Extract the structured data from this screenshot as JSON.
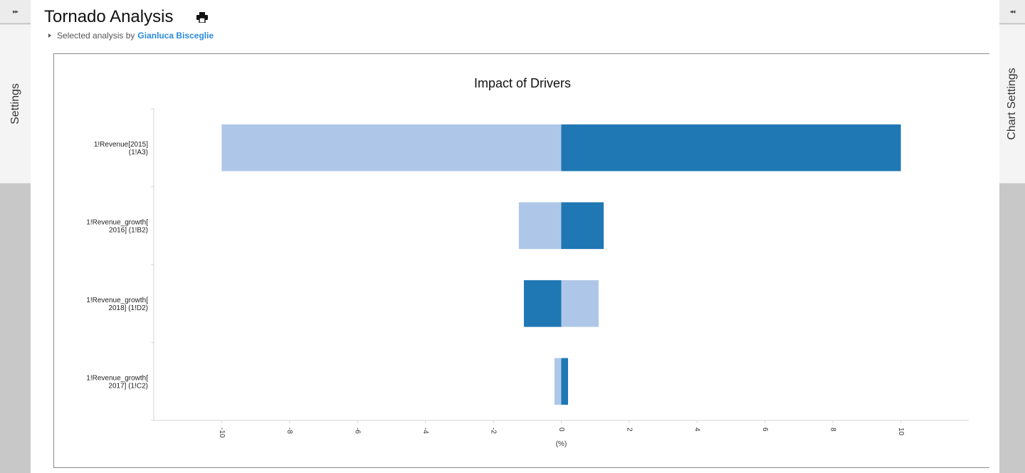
{
  "header": {
    "title": "Tornado Analysis",
    "subtitle_prefix": "Selected analysis by",
    "author": "Gianluca Bisceglie"
  },
  "left_panel": {
    "toggle": "▸▸",
    "label": "Settings"
  },
  "right_panel": {
    "toggle": "◂◂",
    "label": "Chart Settings"
  },
  "chart_data": {
    "type": "bar",
    "orientation": "horizontal",
    "title": "Impact of Drivers",
    "xlabel": "(%)",
    "xlim": [
      -12,
      12
    ],
    "x_ticks": [
      -10,
      -8,
      -6,
      -4,
      -2,
      0,
      2,
      4,
      6,
      8,
      10
    ],
    "categories": [
      [
        "1!Revenue[2015]",
        "(1!A3)"
      ],
      [
        "1!Revenue_growth[",
        "2016] (1!B2)"
      ],
      [
        "1!Revenue_growth[",
        "2018] (1!D2)"
      ],
      [
        "1!Revenue_growth[",
        "2017] (1!C2)"
      ]
    ],
    "bars": [
      {
        "low": -10.0,
        "high": 10.0,
        "low_color": "light",
        "high_color": "dark"
      },
      {
        "low": -1.25,
        "high": 1.25,
        "low_color": "light",
        "high_color": "dark"
      },
      {
        "low": -1.1,
        "high": 1.1,
        "low_color": "dark",
        "high_color": "light"
      },
      {
        "low": -0.2,
        "high": 0.2,
        "low_color": "light",
        "high_color": "dark"
      }
    ],
    "colors": {
      "light": "#aec7e8",
      "dark": "#1f77b4"
    }
  }
}
